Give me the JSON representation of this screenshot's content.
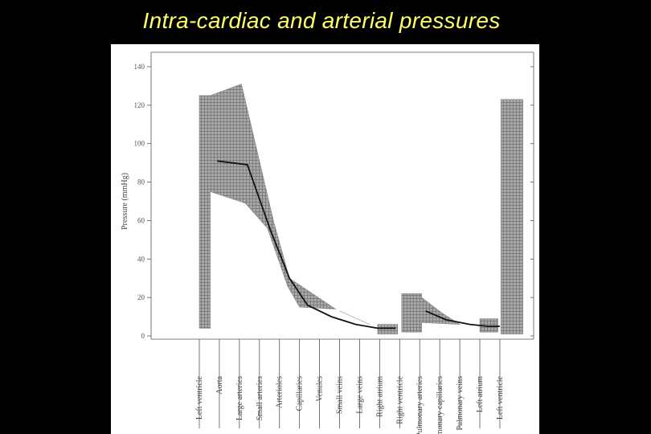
{
  "slide": {
    "title": "Intra-cardiac and arterial pressures"
  },
  "colors": {
    "background": "#000000",
    "title": "#ffff66",
    "band": "#8c8c8c",
    "mean_line": "#111111"
  },
  "chart_data": {
    "type": "area",
    "title": "",
    "xlabel": "",
    "ylabel": "Pressure (mmHg)",
    "ylim": [
      0,
      140
    ],
    "yticks": [
      0,
      20,
      40,
      60,
      80,
      100,
      120,
      140
    ],
    "grid": false,
    "categories": [
      "Left ventricle",
      "Aorta",
      "Large arteries",
      "Small arteries",
      "Arterioles",
      "Capillaries",
      "Venules",
      "Small veins",
      "Large veins",
      "Right atrium",
      "Right ventricle",
      "Pulmonary arteries",
      "Pulmonary capillaries",
      "Pulmonary veins",
      "Left atrium",
      "Left ventricle"
    ],
    "series": [
      {
        "role": "range",
        "segments": [
          {
            "x": [
              0,
              0.55,
              0.55,
              2.1,
              3.7,
              4.5,
              6.8,
              6.8,
              5.0,
              4.4,
              3.4,
              2.3,
              0.55,
              0.55,
              0
            ],
            "y": [
              125,
              125,
              125,
              131,
              60,
              30,
              14,
              14,
              15,
              26,
              56,
              69,
              75,
              4,
              4
            ]
          },
          {
            "x": [
              7.0,
              8.5,
              8.5,
              7.0
            ],
            "y": [
              13,
              6,
              6,
              13
            ]
          },
          {
            "x": [
              8.9,
              9.9,
              9.9,
              8.9
            ],
            "y": [
              6,
              6,
              1,
              1
            ]
          },
          {
            "x": [
              10.1,
              11.1,
              11.1,
              12.1,
              12.1,
              13.0,
              13.0,
              11.1,
              11.1,
              10.1
            ],
            "y": [
              22,
              22,
              20,
              12,
              12,
              6,
              6,
              7,
              2,
              2
            ]
          },
          {
            "x": [
              14.0,
              14.9,
              14.9,
              14.0
            ],
            "y": [
              9,
              9,
              2,
              2
            ]
          },
          {
            "x": [
              15.05,
              16.15,
              16.15,
              15.05
            ],
            "y": [
              123,
              123,
              1,
              1
            ]
          }
        ]
      },
      {
        "role": "mean",
        "x": [
          0.9,
          2.4,
          3.55,
          4.5,
          5.4,
          6.6,
          7.8,
          8.9,
          9.8
        ],
        "y": [
          91,
          89,
          55,
          30,
          16,
          10,
          6,
          4,
          4
        ]
      },
      {
        "role": "mean",
        "x": [
          11.3,
          12.3,
          13.5,
          14.4,
          15.0
        ],
        "y": [
          13,
          8.5,
          6,
          5,
          5
        ]
      }
    ]
  }
}
